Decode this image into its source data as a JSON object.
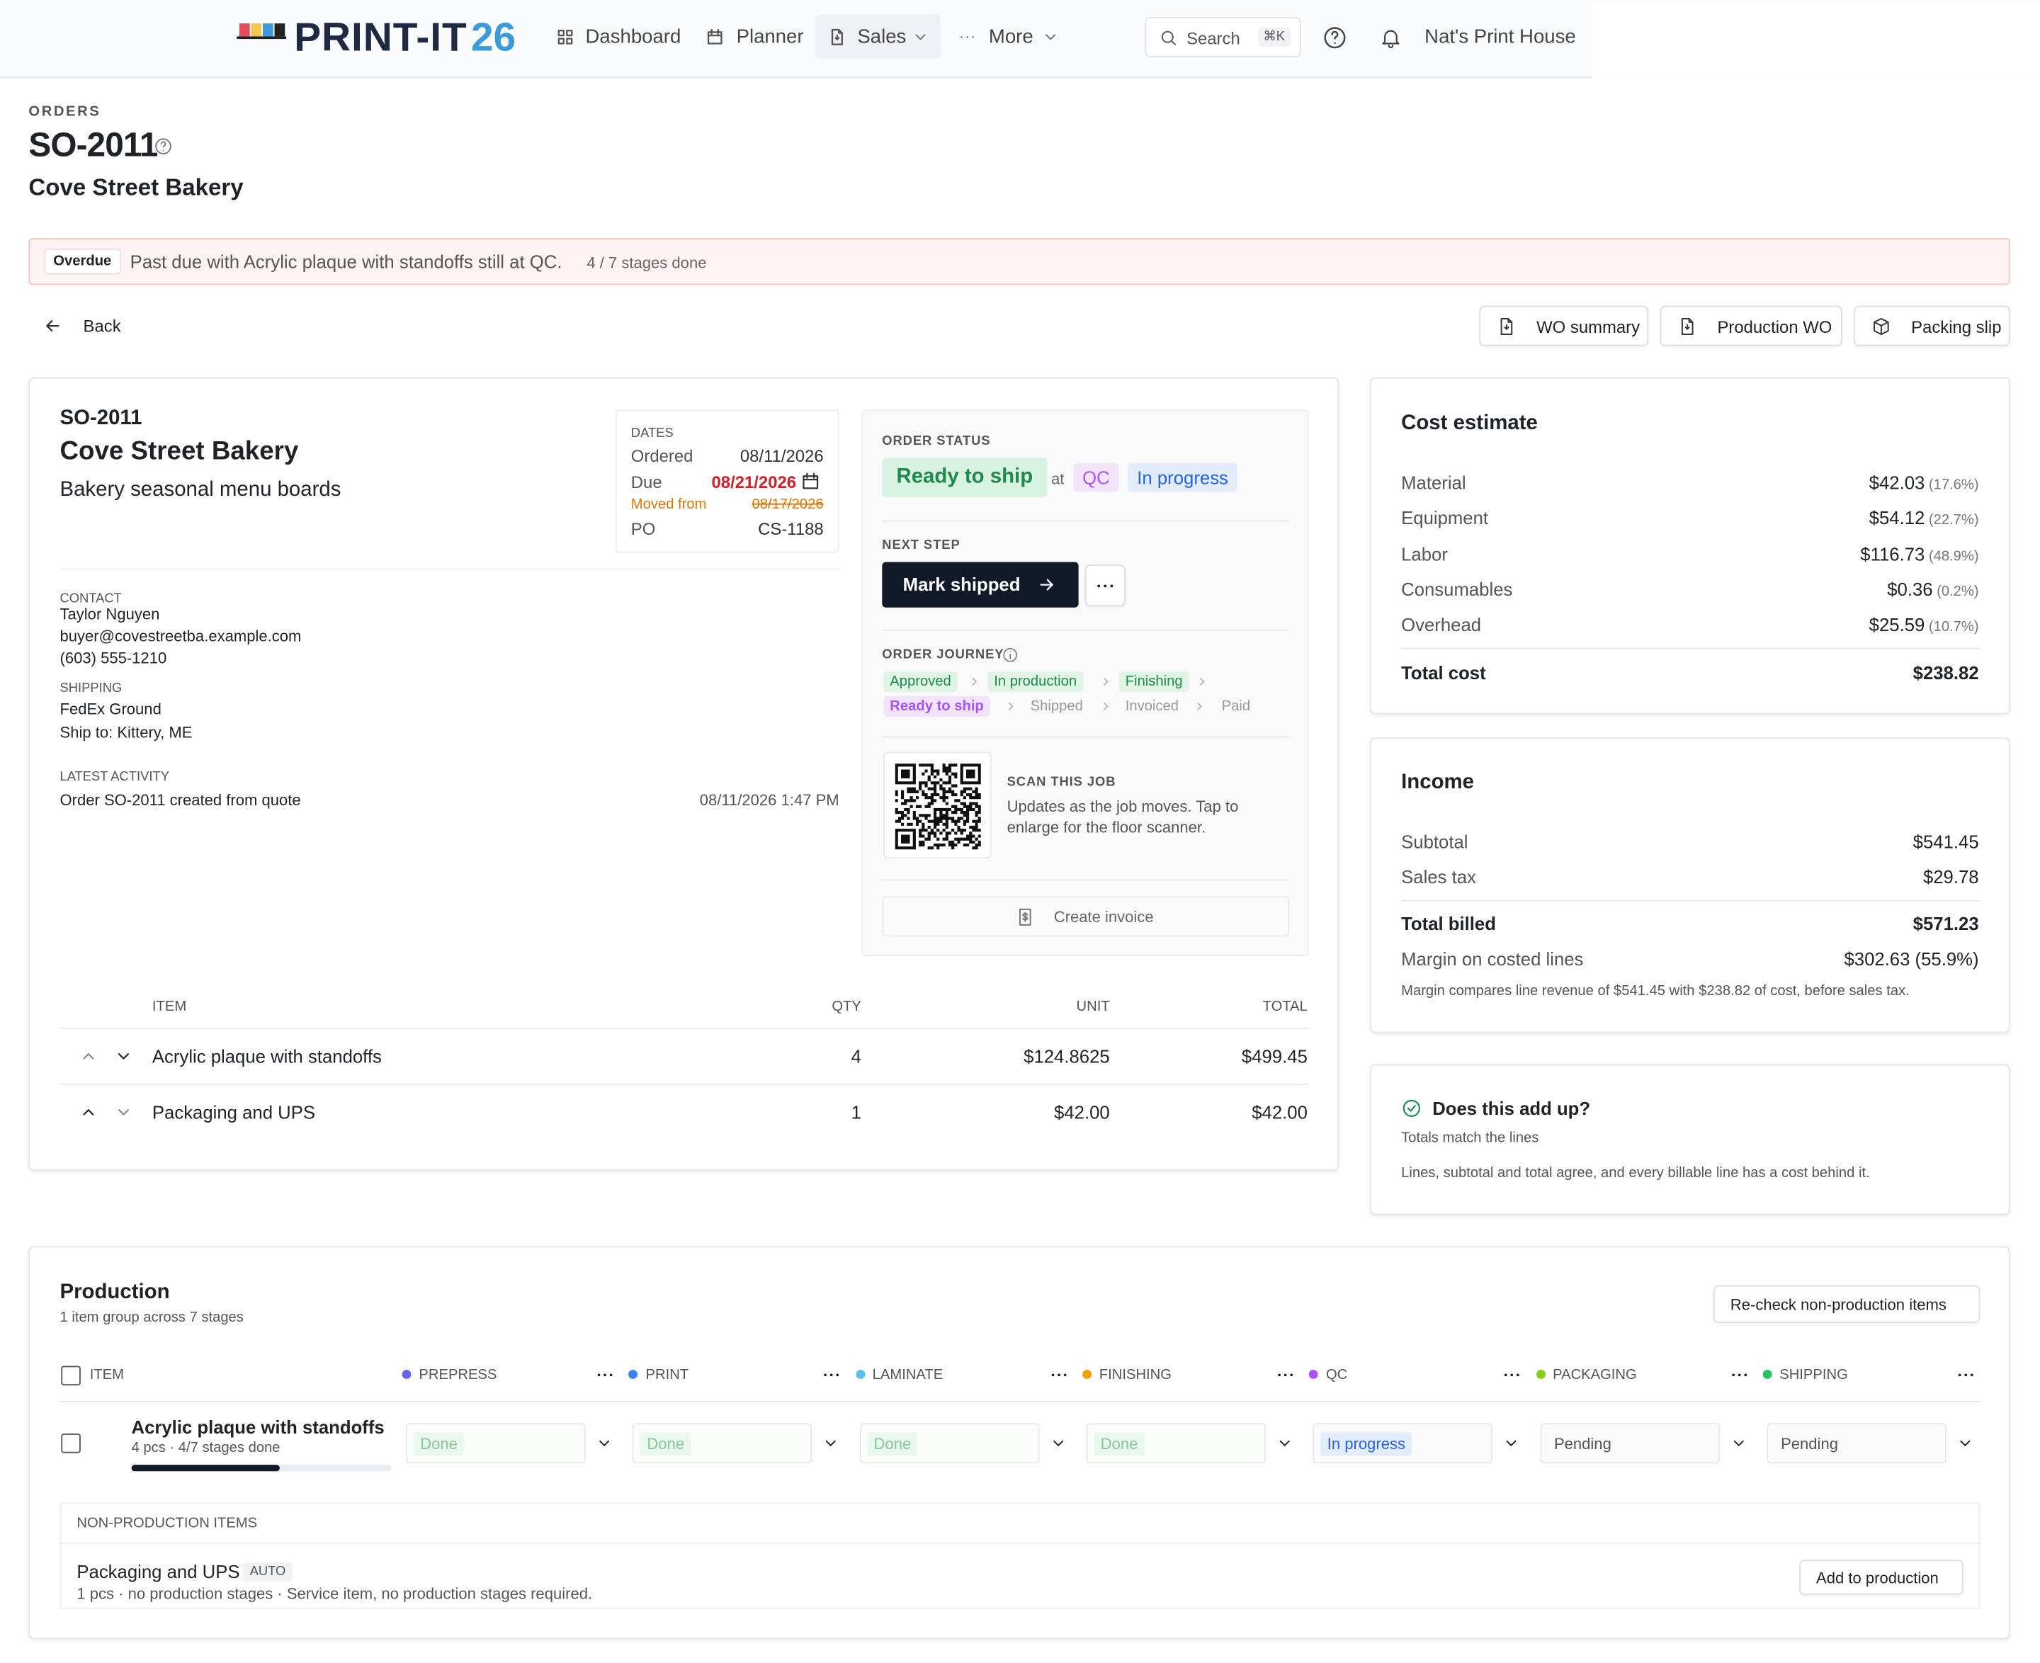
{
  "nav": {
    "brand": "PRINT-IT",
    "brand_num": "26",
    "items": [
      "Dashboard",
      "Planner",
      "Sales",
      "More"
    ],
    "search": "Search",
    "shortcut": "⌘K",
    "account": "Nat's Print House"
  },
  "header": {
    "eyebrow": "ORDERS",
    "order_id": "SO-2011",
    "customer": "Cove Street Bakery"
  },
  "alert": {
    "badge": "Overdue",
    "message": "Past due with Acrylic plaque with standoffs still at QC.",
    "progress": "4 / 7 stages done"
  },
  "actions": {
    "back": "Back",
    "buttons": [
      "WO summary",
      "Production WO",
      "Packing slip"
    ]
  },
  "order": {
    "id": "SO-2011",
    "customer": "Cove Street Bakery",
    "description": "Bakery seasonal menu boards",
    "dates": {
      "label": "DATES",
      "rows": [
        [
          "Ordered",
          "08/11/2026"
        ],
        [
          "Due",
          "08/21/2026"
        ],
        [
          "Moved from",
          "08/17/2026"
        ],
        [
          "PO",
          "CS-1188"
        ]
      ]
    },
    "contact": {
      "label": "CONTACT",
      "name": "Taylor Nguyen",
      "email": "buyer@covestreetba.example.com",
      "phone": "(603) 555-1210"
    },
    "shipping": {
      "label": "SHIPPING",
      "method": "FedEx Ground",
      "ship_to": "Ship to: Kittery, ME"
    },
    "activity": {
      "label": "LATEST ACTIVITY",
      "text": "Order SO-2011 created from quote",
      "time": "08/11/2026 1:47 PM"
    }
  },
  "status": {
    "label": "ORDER STATUS",
    "state": "Ready to ship",
    "at": "at",
    "stage": "QC",
    "stage_state": "In progress",
    "next_label": "NEXT STEP",
    "next_action": "Mark shipped",
    "journey_label": "ORDER JOURNEY",
    "journey": [
      "Approved",
      "In production",
      "Finishing",
      "Ready to ship",
      "Shipped",
      "Invoiced",
      "Paid"
    ],
    "scan_label": "SCAN THIS JOB",
    "scan_text": "Updates as the job moves. Tap to enlarge for the floor scanner.",
    "invoice": "Create invoice"
  },
  "items": {
    "columns": [
      "ITEM",
      "QTY",
      "UNIT",
      "TOTAL"
    ],
    "rows": [
      [
        "Acrylic plaque with standoffs",
        "4",
        "$124.8625",
        "$499.45"
      ],
      [
        "Packaging and UPS",
        "1",
        "$42.00",
        "$42.00"
      ]
    ]
  },
  "cost": {
    "title": "Cost estimate",
    "rows": [
      [
        "Material",
        "$42.03",
        "(17.6%)"
      ],
      [
        "Equipment",
        "$54.12",
        "(22.7%)"
      ],
      [
        "Labor",
        "$116.73",
        "(48.9%)"
      ],
      [
        "Consumables",
        "$0.36",
        "(0.2%)"
      ],
      [
        "Overhead",
        "$25.59",
        "(10.7%)"
      ]
    ],
    "total_label": "Total cost",
    "total": "$238.82"
  },
  "income": {
    "title": "Income",
    "rows": [
      [
        "Subtotal",
        "$541.45"
      ],
      [
        "Sales tax",
        "$29.78"
      ]
    ],
    "total_label": "Total billed",
    "total": "$571.23",
    "margin_label": "Margin on costed lines",
    "margin": "$302.63 (55.9%)",
    "note": "Margin compares line revenue of $541.45 with $238.82 of cost, before sales tax."
  },
  "check": {
    "title": "Does this add up?",
    "subtitle": "Totals match the lines",
    "text": "Lines, subtotal and total agree, and every billable line has a cost behind it."
  },
  "production": {
    "title": "Production",
    "subtitle": "1 item group across 7 stages",
    "recheck": "Re-check non-production items",
    "item_col": "ITEM",
    "stages": [
      {
        "name": "PREPRESS",
        "color": "#6366f1"
      },
      {
        "name": "PRINT",
        "color": "#3b82f6"
      },
      {
        "name": "LAMINATE",
        "color": "#5bc0eb"
      },
      {
        "name": "FINISHING",
        "color": "#f59e0b"
      },
      {
        "name": "QC",
        "color": "#a855f7"
      },
      {
        "name": "PACKAGING",
        "color": "#84cc16"
      },
      {
        "name": "SHIPPING",
        "color": "#22c55e"
      }
    ],
    "rows": [
      {
        "name": "Acrylic plaque with standoffs",
        "meta": "4 pcs · 4/7 stages done",
        "statuses": [
          "Done",
          "Done",
          "Done",
          "Done",
          "In progress",
          "Pending",
          "Pending"
        ]
      }
    ],
    "non_production": {
      "label": "NON-PRODUCTION ITEMS",
      "name": "Packaging and UPS",
      "tag": "AUTO",
      "meta": "1 pcs · no production stages · Service item, no production stages required.",
      "action": "Add to production"
    }
  }
}
